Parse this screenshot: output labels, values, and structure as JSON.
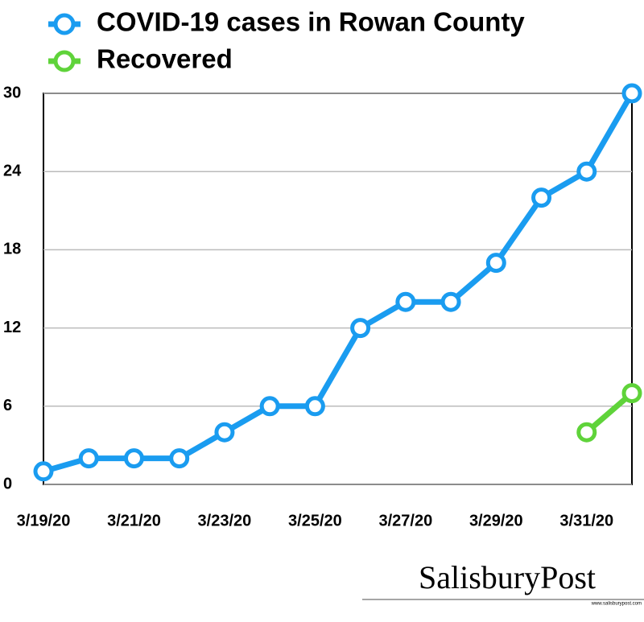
{
  "chart_data": {
    "type": "line",
    "categories": [
      "3/19/20",
      null,
      "3/21/20",
      null,
      "3/23/20",
      null,
      "3/25/20",
      null,
      "3/27/20",
      null,
      "3/29/20",
      null,
      "3/31/20",
      null
    ],
    "series": [
      {
        "name": "COVID-19 cases in Rowan County",
        "color": "#1a9cf0",
        "values": [
          1,
          2,
          2,
          2,
          4,
          6,
          6,
          12,
          14,
          14,
          17,
          22,
          24,
          30
        ]
      },
      {
        "name": "Recovered",
        "color": "#5fd33a",
        "values": [
          null,
          null,
          null,
          null,
          null,
          null,
          null,
          null,
          null,
          null,
          null,
          null,
          4,
          7
        ]
      }
    ],
    "ylim": [
      0,
      30
    ],
    "yticks": [
      0,
      6,
      12,
      18,
      24,
      30
    ],
    "grid": true,
    "legend": "top-left",
    "logo": "SalisburyPost",
    "logo_url": "www.salisburypost.com"
  }
}
